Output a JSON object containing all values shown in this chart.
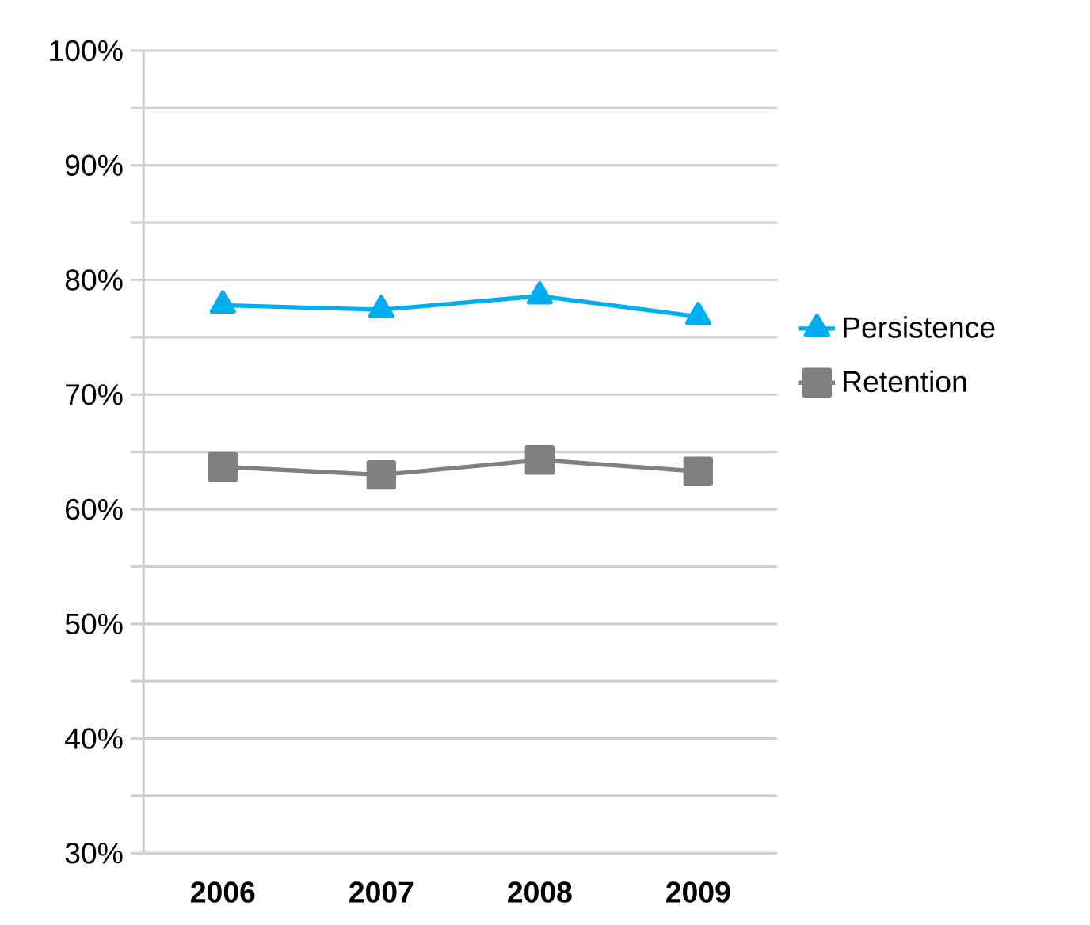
{
  "chart_data": {
    "type": "line",
    "categories": [
      "2006",
      "2007",
      "2008",
      "2009"
    ],
    "series": [
      {
        "name": "Persistence",
        "color": "#00aeef",
        "marker": "triangle",
        "values": [
          77.8,
          77.4,
          78.6,
          76.8
        ]
      },
      {
        "name": "Retention",
        "color": "#808083",
        "marker": "square",
        "values": [
          63.7,
          63.0,
          64.3,
          63.3
        ]
      }
    ],
    "ylim": [
      30,
      100
    ],
    "yticks": [
      {
        "value": 30,
        "label": "30%"
      },
      {
        "value": 35,
        "label": null
      },
      {
        "value": 40,
        "label": "40%"
      },
      {
        "value": 45,
        "label": null
      },
      {
        "value": 50,
        "label": "50%"
      },
      {
        "value": 55,
        "label": null
      },
      {
        "value": 60,
        "label": "60%"
      },
      {
        "value": 65,
        "label": null
      },
      {
        "value": 70,
        "label": "70%"
      },
      {
        "value": 75,
        "label": null
      },
      {
        "value": 80,
        "label": "80%"
      },
      {
        "value": 85,
        "label": null
      },
      {
        "value": 90,
        "label": "90%"
      },
      {
        "value": 95,
        "label": null
      },
      {
        "value": 100,
        "label": "100%"
      }
    ],
    "grid": "y",
    "legend": "right"
  }
}
